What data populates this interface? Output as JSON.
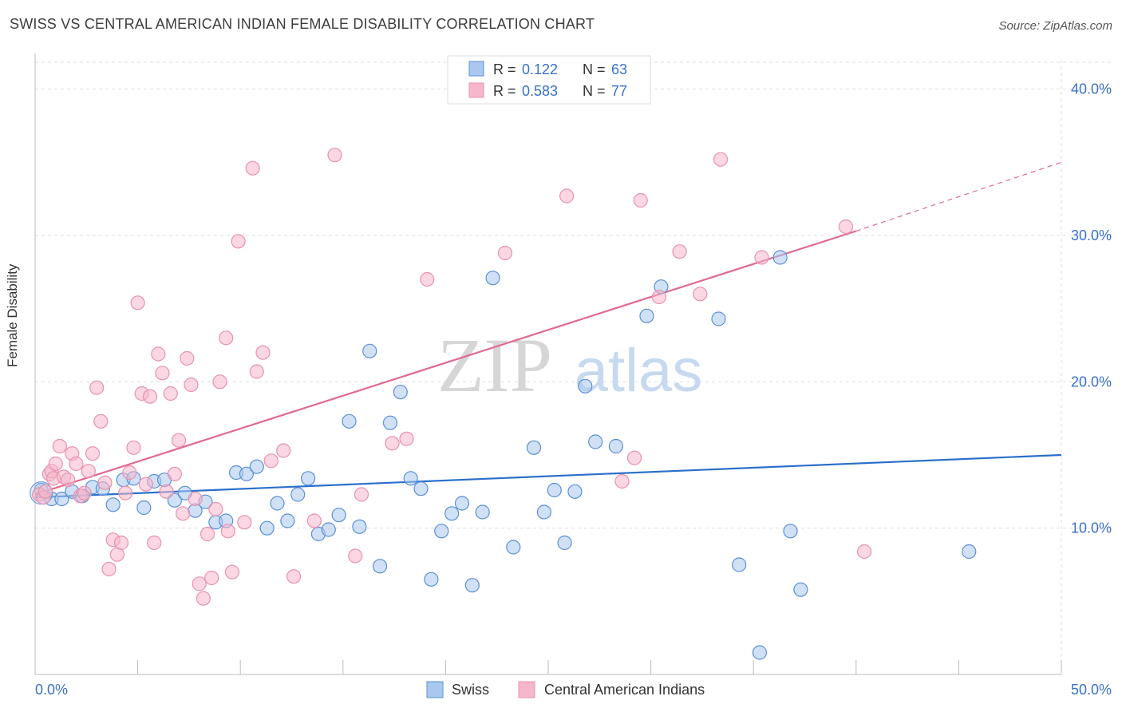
{
  "title": "SWISS VS CENTRAL AMERICAN INDIAN FEMALE DISABILITY CORRELATION CHART",
  "source": "Source: ZipAtlas.com",
  "watermark": {
    "zip": "ZIP",
    "atlas": "atlas"
  },
  "colors": {
    "swiss_fill": "#aac8ef",
    "swiss_stroke": "#5b8fd6",
    "swiss_line": "#2a6fcb",
    "cai_fill": "#f6b7cb",
    "cai_stroke": "#e891ad",
    "cai_line": "#e0698f",
    "tick_label": "#3a70c8",
    "grid": "#dedede"
  },
  "legend": {
    "rows": [
      {
        "r_label": "R =",
        "r_value": "0.122",
        "n_label": "N =",
        "n_value": "63"
      },
      {
        "r_label": "R =",
        "r_value": "0.583",
        "n_label": "N =",
        "n_value": "77"
      }
    ],
    "bottom": [
      "Swiss",
      "Central American Indians"
    ]
  },
  "chart_data": {
    "type": "scatter",
    "title": "SWISS VS CENTRAL AMERICAN INDIAN FEMALE DISABILITY CORRELATION CHART",
    "xlabel": "",
    "ylabel": "Female Disability",
    "xlim": [
      0,
      50
    ],
    "ylim": [
      0,
      42
    ],
    "x_tick_labels": [
      "0.0%",
      "50.0%"
    ],
    "y_ticks": [
      10,
      20,
      30,
      40
    ],
    "y_tick_labels": [
      "10.0%",
      "20.0%",
      "30.0%",
      "40.0%"
    ],
    "grid": true,
    "legend_position": "top-center",
    "series": [
      {
        "name": "Swiss",
        "r": 0.122,
        "n": 63,
        "trend": {
          "x0": 0,
          "y0": 12.1,
          "x1": 50,
          "y1": 15.0
        },
        "points": [
          [
            0.3,
            12.6
          ],
          [
            0.8,
            12.0
          ],
          [
            1.3,
            12.0
          ],
          [
            1.8,
            12.5
          ],
          [
            2.3,
            12.2
          ],
          [
            2.8,
            12.8
          ],
          [
            3.3,
            12.7
          ],
          [
            3.8,
            11.6
          ],
          [
            4.3,
            13.3
          ],
          [
            4.8,
            13.4
          ],
          [
            5.3,
            11.4
          ],
          [
            5.8,
            13.2
          ],
          [
            6.3,
            13.3
          ],
          [
            6.8,
            11.9
          ],
          [
            7.3,
            12.4
          ],
          [
            7.8,
            11.2
          ],
          [
            8.3,
            11.8
          ],
          [
            8.8,
            10.4
          ],
          [
            9.3,
            10.5
          ],
          [
            9.8,
            13.8
          ],
          [
            10.3,
            13.7
          ],
          [
            10.8,
            14.2
          ],
          [
            11.3,
            10.0
          ],
          [
            11.8,
            11.7
          ],
          [
            12.3,
            10.5
          ],
          [
            12.8,
            12.3
          ],
          [
            13.3,
            13.4
          ],
          [
            13.8,
            9.6
          ],
          [
            14.3,
            9.9
          ],
          [
            14.8,
            10.9
          ],
          [
            15.3,
            17.3
          ],
          [
            15.8,
            10.1
          ],
          [
            16.3,
            22.1
          ],
          [
            16.8,
            7.4
          ],
          [
            17.3,
            17.2
          ],
          [
            17.8,
            19.3
          ],
          [
            18.3,
            13.4
          ],
          [
            18.8,
            12.7
          ],
          [
            19.3,
            6.5
          ],
          [
            19.8,
            9.8
          ],
          [
            20.3,
            11.0
          ],
          [
            20.8,
            11.7
          ],
          [
            21.3,
            6.1
          ],
          [
            21.8,
            11.1
          ],
          [
            22.3,
            27.1
          ],
          [
            23.3,
            8.7
          ],
          [
            24.3,
            15.5
          ],
          [
            24.8,
            11.1
          ],
          [
            25.3,
            12.6
          ],
          [
            25.8,
            9.0
          ],
          [
            26.3,
            12.5
          ],
          [
            26.8,
            19.7
          ],
          [
            27.3,
            15.9
          ],
          [
            28.3,
            15.6
          ],
          [
            29.8,
            24.5
          ],
          [
            30.5,
            26.5
          ],
          [
            33.3,
            24.3
          ],
          [
            34.3,
            7.5
          ],
          [
            35.3,
            1.5
          ],
          [
            36.3,
            28.5
          ],
          [
            36.8,
            9.8
          ],
          [
            37.3,
            5.8
          ],
          [
            45.5,
            8.4
          ]
        ]
      },
      {
        "name": "Central American Indians",
        "r": 0.583,
        "n": 77,
        "trend": {
          "x0": 0,
          "y0": 12.3,
          "x1": 40,
          "y1": 30.3
        },
        "trend_dashed_to": {
          "x": 50,
          "y": 35.0
        },
        "points": [
          [
            0.2,
            12.3
          ],
          [
            0.4,
            12.1
          ],
          [
            0.5,
            12.5
          ],
          [
            0.7,
            13.7
          ],
          [
            0.8,
            13.9
          ],
          [
            0.9,
            13.4
          ],
          [
            1.0,
            14.4
          ],
          [
            1.2,
            15.6
          ],
          [
            1.4,
            13.5
          ],
          [
            1.6,
            13.3
          ],
          [
            1.8,
            15.1
          ],
          [
            2.0,
            14.4
          ],
          [
            2.2,
            12.2
          ],
          [
            2.4,
            12.4
          ],
          [
            2.6,
            13.9
          ],
          [
            2.8,
            15.1
          ],
          [
            3.0,
            19.6
          ],
          [
            3.2,
            17.3
          ],
          [
            3.4,
            13.1
          ],
          [
            3.6,
            7.2
          ],
          [
            3.8,
            9.2
          ],
          [
            4.0,
            8.2
          ],
          [
            4.2,
            9.0
          ],
          [
            4.4,
            12.4
          ],
          [
            4.6,
            13.8
          ],
          [
            4.8,
            15.5
          ],
          [
            5.0,
            25.4
          ],
          [
            5.2,
            19.2
          ],
          [
            5.4,
            13.0
          ],
          [
            5.6,
            19.0
          ],
          [
            5.8,
            9.0
          ],
          [
            6.0,
            21.9
          ],
          [
            6.2,
            20.6
          ],
          [
            6.4,
            12.5
          ],
          [
            6.6,
            19.2
          ],
          [
            6.8,
            13.7
          ],
          [
            7.0,
            16.0
          ],
          [
            7.2,
            11.0
          ],
          [
            7.4,
            21.6
          ],
          [
            7.6,
            19.8
          ],
          [
            7.8,
            12.0
          ],
          [
            8.0,
            6.2
          ],
          [
            8.2,
            5.2
          ],
          [
            8.4,
            9.6
          ],
          [
            8.6,
            6.6
          ],
          [
            8.8,
            11.3
          ],
          [
            9.0,
            20.0
          ],
          [
            9.3,
            23.0
          ],
          [
            9.6,
            7.0
          ],
          [
            9.9,
            29.6
          ],
          [
            10.2,
            10.4
          ],
          [
            10.6,
            34.6
          ],
          [
            10.8,
            20.7
          ],
          [
            11.1,
            22.0
          ],
          [
            11.5,
            14.6
          ],
          [
            12.1,
            15.3
          ],
          [
            12.6,
            6.7
          ],
          [
            13.6,
            10.5
          ],
          [
            14.6,
            35.5
          ],
          [
            15.6,
            8.1
          ],
          [
            15.9,
            12.3
          ],
          [
            17.4,
            15.8
          ],
          [
            18.1,
            16.1
          ],
          [
            19.1,
            27.0
          ],
          [
            22.9,
            28.8
          ],
          [
            25.9,
            32.7
          ],
          [
            28.6,
            13.2
          ],
          [
            29.2,
            14.8
          ],
          [
            29.5,
            32.4
          ],
          [
            30.4,
            25.8
          ],
          [
            31.4,
            28.9
          ],
          [
            32.4,
            26.0
          ],
          [
            33.4,
            35.2
          ],
          [
            35.4,
            28.5
          ],
          [
            39.5,
            30.6
          ],
          [
            40.4,
            8.4
          ],
          [
            9.4,
            9.8
          ]
        ]
      }
    ]
  }
}
